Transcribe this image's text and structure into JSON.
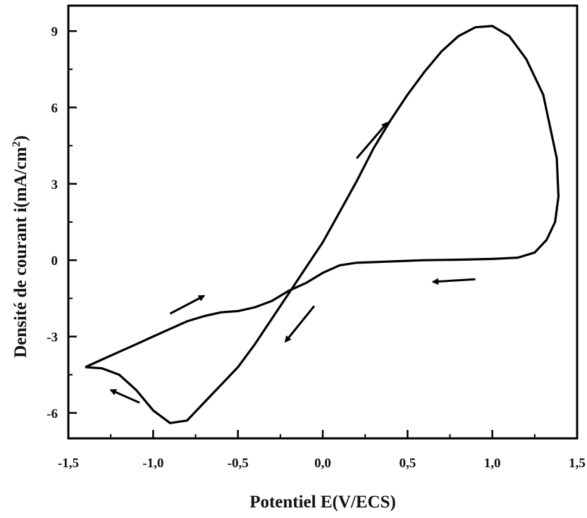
{
  "chart_data": {
    "type": "line",
    "title": "",
    "xlabel": "Potentiel E(V/ECS)",
    "ylabel_main": "Densité de courant i(mA/cm",
    "ylabel_sup": "2",
    "ylabel_close": ")",
    "xlim": [
      -1.5,
      1.5
    ],
    "ylim": [
      -7,
      10
    ],
    "xticks": [
      -1.5,
      -1.0,
      -0.5,
      0.0,
      0.5,
      1.0,
      1.5
    ],
    "xtick_labels": [
      "-1,5",
      "-1,0",
      "-0,5",
      "0,0",
      "0,5",
      "1,0",
      "1,5"
    ],
    "yticks": [
      -6,
      -3,
      0,
      3,
      6,
      9
    ],
    "ytick_labels": [
      "-6",
      "-3",
      "0",
      "3",
      "6",
      "9"
    ],
    "grid": false,
    "series": [
      {
        "color": "#000000",
        "x": [
          -1.4,
          -1.3,
          -1.2,
          -1.1,
          -1.0,
          -0.9,
          -0.8,
          -0.7,
          -0.6,
          -0.5,
          -0.4,
          -0.3,
          -0.2,
          -0.1,
          0.0,
          0.1,
          0.2,
          0.3,
          0.4,
          0.5,
          0.6,
          0.7,
          0.8,
          0.9,
          1.0,
          1.1,
          1.2,
          1.3,
          1.38,
          1.39,
          1.37,
          1.32,
          1.25,
          1.15,
          1.0,
          0.8,
          0.6,
          0.4,
          0.2,
          0.1,
          0.0,
          -0.1,
          -0.2,
          -0.3,
          -0.4,
          -0.5,
          -0.6,
          -0.7,
          -0.8,
          -0.9,
          -1.0,
          -1.1,
          -1.2,
          -1.3,
          -1.4
        ],
        "y": [
          -4.2,
          -4.25,
          -4.5,
          -5.1,
          -5.9,
          -6.4,
          -6.3,
          -5.6,
          -4.9,
          -4.2,
          -3.3,
          -2.3,
          -1.3,
          -0.3,
          0.7,
          1.9,
          3.1,
          4.4,
          5.5,
          6.5,
          7.4,
          8.2,
          8.8,
          9.15,
          9.2,
          8.8,
          7.9,
          6.5,
          4.0,
          2.5,
          1.5,
          0.8,
          0.3,
          0.1,
          0.05,
          0.02,
          0.0,
          -0.05,
          -0.1,
          -0.2,
          -0.5,
          -0.9,
          -1.2,
          -1.6,
          -1.85,
          -2.0,
          -2.05,
          -2.2,
          -2.4,
          -2.7,
          -3.0,
          -3.3,
          -3.6,
          -3.9,
          -4.2
        ]
      }
    ],
    "direction_arrows": [
      {
        "x1": -0.9,
        "y1": -2.1,
        "x2": -0.7,
        "y2": -1.4
      },
      {
        "x1": 0.2,
        "y1": 4.0,
        "x2": 0.38,
        "y2": 5.4
      },
      {
        "x1": 0.9,
        "y1": -0.75,
        "x2": 0.65,
        "y2": -0.85
      },
      {
        "x1": -0.05,
        "y1": -1.8,
        "x2": -0.22,
        "y2": -3.2
      },
      {
        "x1": -1.08,
        "y1": -5.6,
        "x2": -1.25,
        "y2": -5.1
      }
    ]
  }
}
